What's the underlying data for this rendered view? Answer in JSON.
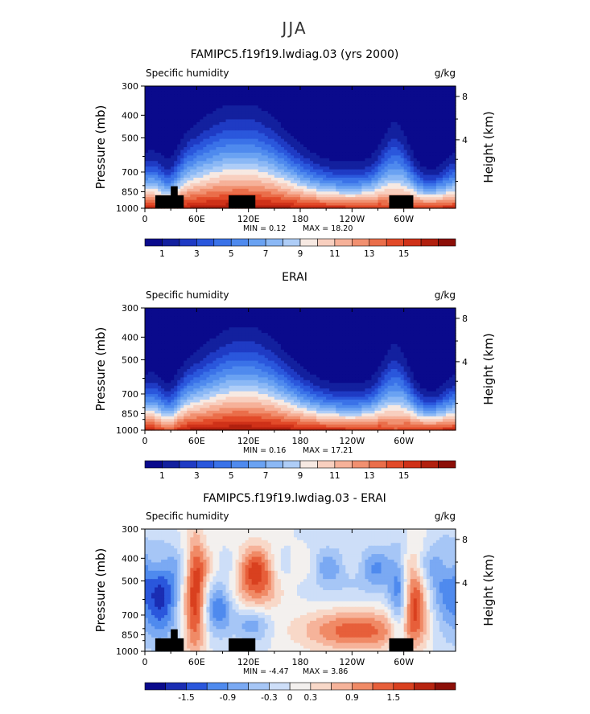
{
  "figure": {
    "season": "JJA"
  },
  "axes": {
    "pressure_label": "Pressure (mb)",
    "height_label": "Height (km)",
    "pressure_ticks": [
      300,
      400,
      500,
      700,
      850,
      1000
    ],
    "height_ticks": [
      8,
      4
    ],
    "x_ticks": [
      "0",
      "60E",
      "120E",
      "180",
      "120W",
      "60W"
    ],
    "x_tick_lon": [
      0,
      60,
      120,
      180,
      240,
      300
    ],
    "x_range_lon": [
      0,
      360
    ],
    "p_range": [
      300,
      1000
    ]
  },
  "chart_data": [
    {
      "type": "heatmap",
      "title": "FAMIPC5.f19f19.lwdiag.03 (yrs 2000)",
      "field": "Specific humidity",
      "units": "g/kg",
      "min_text": "MIN =    0.12",
      "max_text": "MAX =   18.20",
      "min": 0.12,
      "max": 18.2,
      "colorbar_levels": [
        0,
        1,
        2,
        3,
        4,
        5,
        6,
        7,
        8,
        9,
        10,
        11,
        12,
        13,
        14,
        15,
        16,
        17
      ],
      "colorbar_labels": [
        "1",
        "3",
        "5",
        "7",
        "9",
        "11",
        "13",
        "15"
      ],
      "colorbar_label_positions": [
        1,
        3,
        5,
        7,
        9,
        11,
        13,
        15
      ]
    },
    {
      "type": "heatmap",
      "title": "ERAI",
      "field": "Specific humidity",
      "units": "g/kg",
      "min_text": "MIN =    0.16",
      "max_text": "MAX =   17.21",
      "min": 0.16,
      "max": 17.21,
      "colorbar_levels": [
        0,
        1,
        2,
        3,
        4,
        5,
        6,
        7,
        8,
        9,
        10,
        11,
        12,
        13,
        14,
        15,
        16,
        17
      ],
      "colorbar_labels": [
        "1",
        "3",
        "5",
        "7",
        "9",
        "11",
        "13",
        "15"
      ],
      "colorbar_label_positions": [
        1,
        3,
        5,
        7,
        9,
        11,
        13,
        15
      ]
    },
    {
      "type": "heatmap",
      "title": "FAMIPC5.f19f19.lwdiag.03 - ERAI",
      "field": "Specific humidity",
      "units": "g/kg",
      "min_text": "MIN =   -4.47",
      "max_text": "MAX =    3.86",
      "min": -4.47,
      "max": 3.86,
      "colorbar_levels": [
        -2.1,
        -1.8,
        -1.5,
        -1.2,
        -0.9,
        -0.6,
        -0.3,
        0,
        0.3,
        0.6,
        0.9,
        1.2,
        1.5,
        1.8,
        2.1
      ],
      "colorbar_labels": [
        "-1.5",
        "-0.9",
        "-0.3",
        "0",
        "0.3",
        "0.9",
        "1.5"
      ],
      "colorbar_label_positions": [
        -1.5,
        -0.9,
        -0.3,
        0,
        0.3,
        0.9,
        1.5
      ]
    }
  ],
  "colors": {
    "abs_scale": [
      "#0a0a8c",
      "#13209e",
      "#1f3bc4",
      "#2a57dc",
      "#3a72e8",
      "#4f8aee",
      "#6aa2f2",
      "#8bb8f5",
      "#aecdf7",
      "#f7e9e2",
      "#f8cfbf",
      "#f6b199",
      "#f19070",
      "#ea6e4a",
      "#e24a29",
      "#cf3118",
      "#b1200f",
      "#8c0f08"
    ],
    "diff_scale": [
      "#0a0a8c",
      "#1a2db3",
      "#2a57dc",
      "#4f8aee",
      "#7aa9f3",
      "#a6c6f6",
      "#cddef8",
      "#f3f0ee",
      "#f8d8c8",
      "#f6b39a",
      "#f08a66",
      "#e75f3a",
      "#d9401f",
      "#b72410",
      "#8c0f08"
    ],
    "mask": "#000000"
  }
}
